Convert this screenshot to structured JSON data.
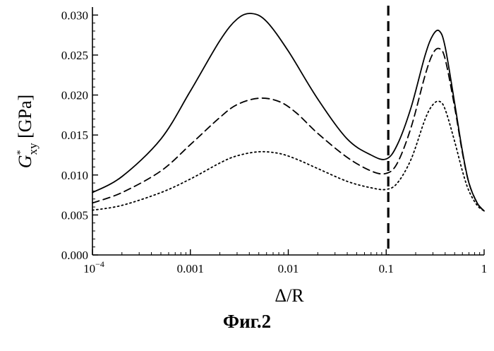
{
  "chart_data": {
    "type": "line",
    "xscale": "log",
    "xlim": [
      0.0001,
      1
    ],
    "ylim": [
      0,
      0.031
    ],
    "x_ticks": [
      {
        "value": 0.0001,
        "label": "10",
        "sup": "−4"
      },
      {
        "value": 0.001,
        "label": "0.001"
      },
      {
        "value": 0.01,
        "label": "0.01"
      },
      {
        "value": 0.1,
        "label": "0.1"
      },
      {
        "value": 1,
        "label": "1"
      }
    ],
    "y_ticks": [
      {
        "value": 0,
        "label": "0.000"
      },
      {
        "value": 0.005,
        "label": "0.005"
      },
      {
        "value": 0.01,
        "label": "0.010"
      },
      {
        "value": 0.015,
        "label": "0.015"
      },
      {
        "value": 0.02,
        "label": "0.020"
      },
      {
        "value": 0.025,
        "label": "0.025"
      },
      {
        "value": 0.03,
        "label": "0.030"
      }
    ],
    "xlabel": "Δ/R",
    "ylabel": {
      "main": "G",
      "superscript": "*",
      "subscript": "xy",
      "unit": " [GPa]"
    },
    "vertical_line": {
      "x": 0.105,
      "style": "dashed"
    },
    "grid": false,
    "series": [
      {
        "style": "solid",
        "x": [
          0.0001,
          0.0002,
          0.0005,
          0.001,
          0.002,
          0.003,
          0.0042,
          0.006,
          0.01,
          0.02,
          0.04,
          0.07,
          0.1,
          0.13,
          0.18,
          0.25,
          0.3,
          0.35,
          0.4,
          0.5,
          0.6,
          0.7,
          0.85,
          1
        ],
        "y": [
          0.0078,
          0.0098,
          0.0145,
          0.0205,
          0.0268,
          0.0295,
          0.0302,
          0.0292,
          0.0255,
          0.0195,
          0.0145,
          0.0125,
          0.012,
          0.0138,
          0.0185,
          0.025,
          0.0275,
          0.028,
          0.026,
          0.019,
          0.013,
          0.009,
          0.0065,
          0.0055
        ]
      },
      {
        "style": "dashed",
        "x": [
          0.0001,
          0.0002,
          0.0005,
          0.001,
          0.002,
          0.003,
          0.005,
          0.008,
          0.012,
          0.02,
          0.04,
          0.07,
          0.1,
          0.13,
          0.18,
          0.25,
          0.3,
          0.35,
          0.4,
          0.5,
          0.6,
          0.7,
          0.85,
          1
        ],
        "y": [
          0.0065,
          0.0078,
          0.0105,
          0.0138,
          0.0172,
          0.0188,
          0.0196,
          0.0192,
          0.0178,
          0.0152,
          0.0122,
          0.0105,
          0.0102,
          0.0115,
          0.016,
          0.0225,
          0.0252,
          0.0258,
          0.0245,
          0.0185,
          0.0128,
          0.009,
          0.0065,
          0.0055
        ]
      },
      {
        "style": "dotted",
        "x": [
          0.0001,
          0.0002,
          0.0005,
          0.001,
          0.002,
          0.003,
          0.005,
          0.008,
          0.012,
          0.02,
          0.04,
          0.07,
          0.1,
          0.13,
          0.18,
          0.25,
          0.3,
          0.35,
          0.4,
          0.5,
          0.6,
          0.7,
          0.85,
          1
        ],
        "y": [
          0.0056,
          0.0062,
          0.0078,
          0.0095,
          0.0115,
          0.0124,
          0.0129,
          0.0127,
          0.012,
          0.0108,
          0.0092,
          0.0084,
          0.0082,
          0.009,
          0.012,
          0.017,
          0.0188,
          0.0192,
          0.0182,
          0.0142,
          0.0105,
          0.008,
          0.0062,
          0.0055
        ]
      }
    ]
  },
  "caption": "Фиг.2"
}
